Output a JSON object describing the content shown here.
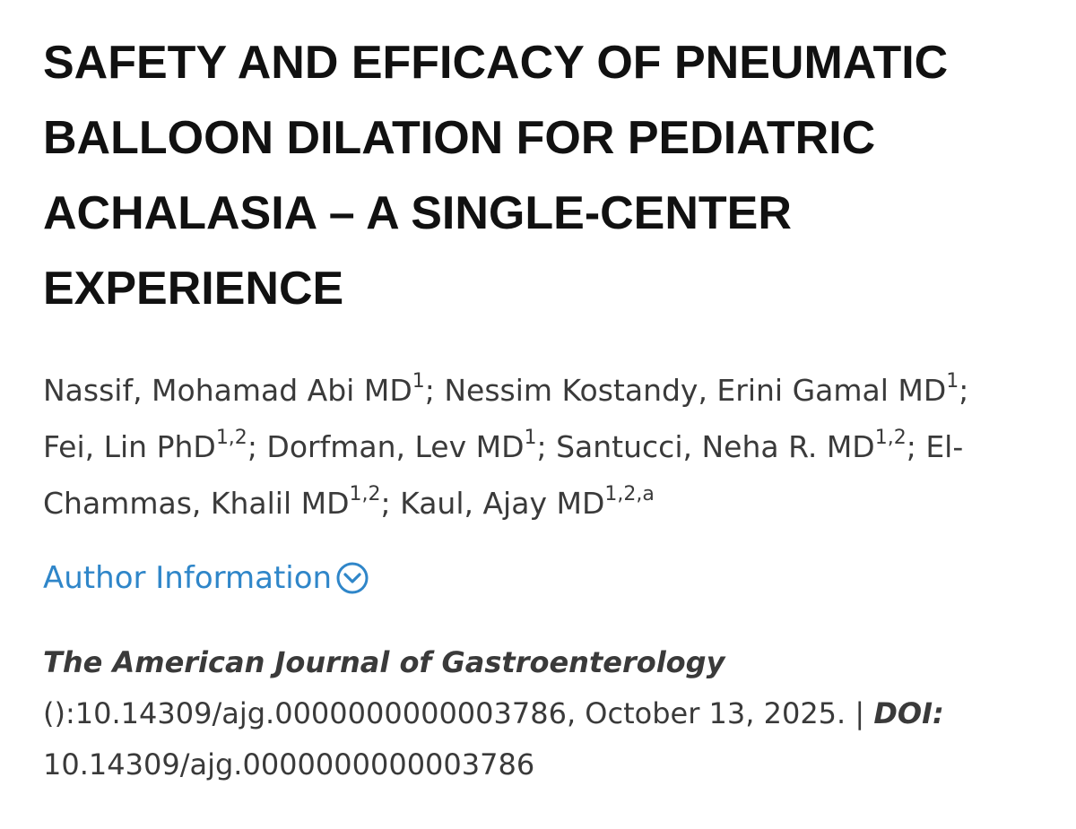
{
  "article": {
    "title": "SAFETY AND EFFICACY OF PNEUMATIC BALLOON DILATION FOR PEDIATRIC ACHALASIA – A SINGLE-CENTER EXPERIENCE",
    "authors": [
      {
        "name": "Nassif, Mohamad Abi MD",
        "affil": "1"
      },
      {
        "name": "Nessim Kostandy, Erini Gamal MD",
        "affil": "1"
      },
      {
        "name": "Fei, Lin PhD",
        "affil": "1,2"
      },
      {
        "name": "Dorfman, Lev MD",
        "affil": "1"
      },
      {
        "name": "Santucci, Neha R. MD",
        "affil": "1,2"
      },
      {
        "name": "El-Chammas, Khalil MD",
        "affil": "1,2"
      },
      {
        "name": "Kaul, Ajay MD",
        "affil": "1,2,a"
      }
    ],
    "author_separator": "; ",
    "author_info_label": "Author Information",
    "citation": {
      "journal": "The American Journal of Gastroenterology",
      "details": "():10.14309/ajg.0000000000003786, October 13, 2025.",
      "divider": " | ",
      "doi_label": "DOI:",
      "doi_value": "10.14309/ajg.0000000000003786"
    }
  },
  "colors": {
    "link": "#2f86c9",
    "title": "#111111",
    "body_text": "#3a3a3a"
  },
  "icons": {
    "author_info_toggle": "chevron-down-circle-icon"
  }
}
